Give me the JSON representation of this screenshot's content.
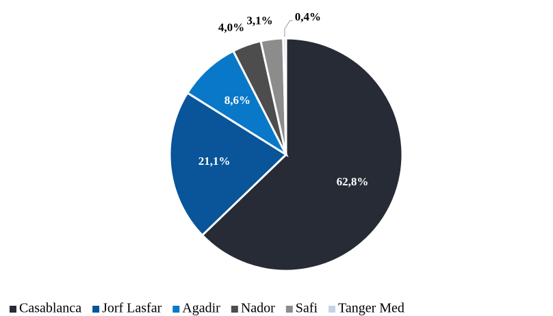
{
  "chart_data": {
    "type": "pie",
    "categories": [
      "Casablanca",
      "Jorf Lasfar",
      "Agadir",
      "Nador",
      "Safi",
      "Tanger Med"
    ],
    "values": [
      62.8,
      21.1,
      8.6,
      4.0,
      3.1,
      0.4
    ],
    "value_labels": [
      "62,8%",
      "21,1%",
      "8,6%",
      "4,0%",
      "3,1%",
      "0,4%"
    ],
    "colors": [
      "#262b36",
      "#0a5499",
      "#0a78c8",
      "#4d4d4d",
      "#8c8c8c",
      "#c5d3e3"
    ],
    "legend": "bottom"
  }
}
